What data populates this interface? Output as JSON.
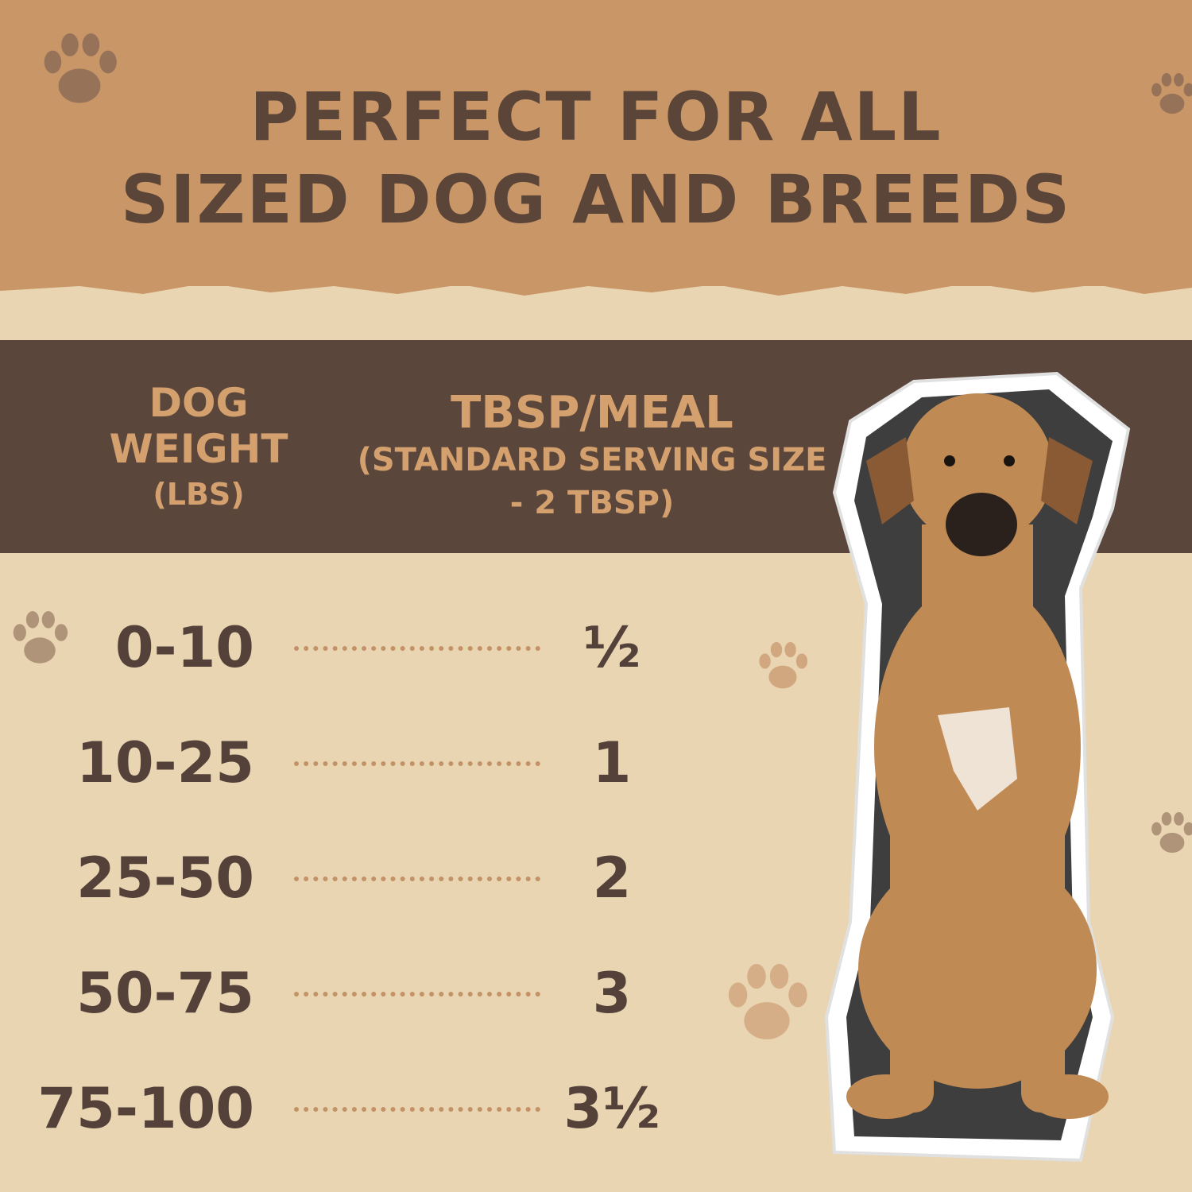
{
  "title": {
    "line1": "PERFECT FOR ALL",
    "line2": "SIZED DOG AND BREEDS"
  },
  "table": {
    "header_weight": "DOG WEIGHT",
    "header_weight_unit": "(LBS)",
    "header_serving": "TBSP/MEAL",
    "header_serving_note": "(STANDARD SERVING SIZE - 2 TBSP)",
    "rows": [
      {
        "weight": "0-10",
        "tbsp": "½"
      },
      {
        "weight": "10-25",
        "tbsp": "1"
      },
      {
        "weight": "25-50",
        "tbsp": "2"
      },
      {
        "weight": "50-75",
        "tbsp": "3"
      },
      {
        "weight": "75-100",
        "tbsp": "3½"
      }
    ]
  },
  "colors": {
    "top_band": "#c99667",
    "text": "#54423a",
    "header_band": "#5b463c",
    "header_text": "#d4a06e",
    "background": "#e9d5b2",
    "dots": "#c39266"
  },
  "icons": [
    "paw-print-icon"
  ]
}
